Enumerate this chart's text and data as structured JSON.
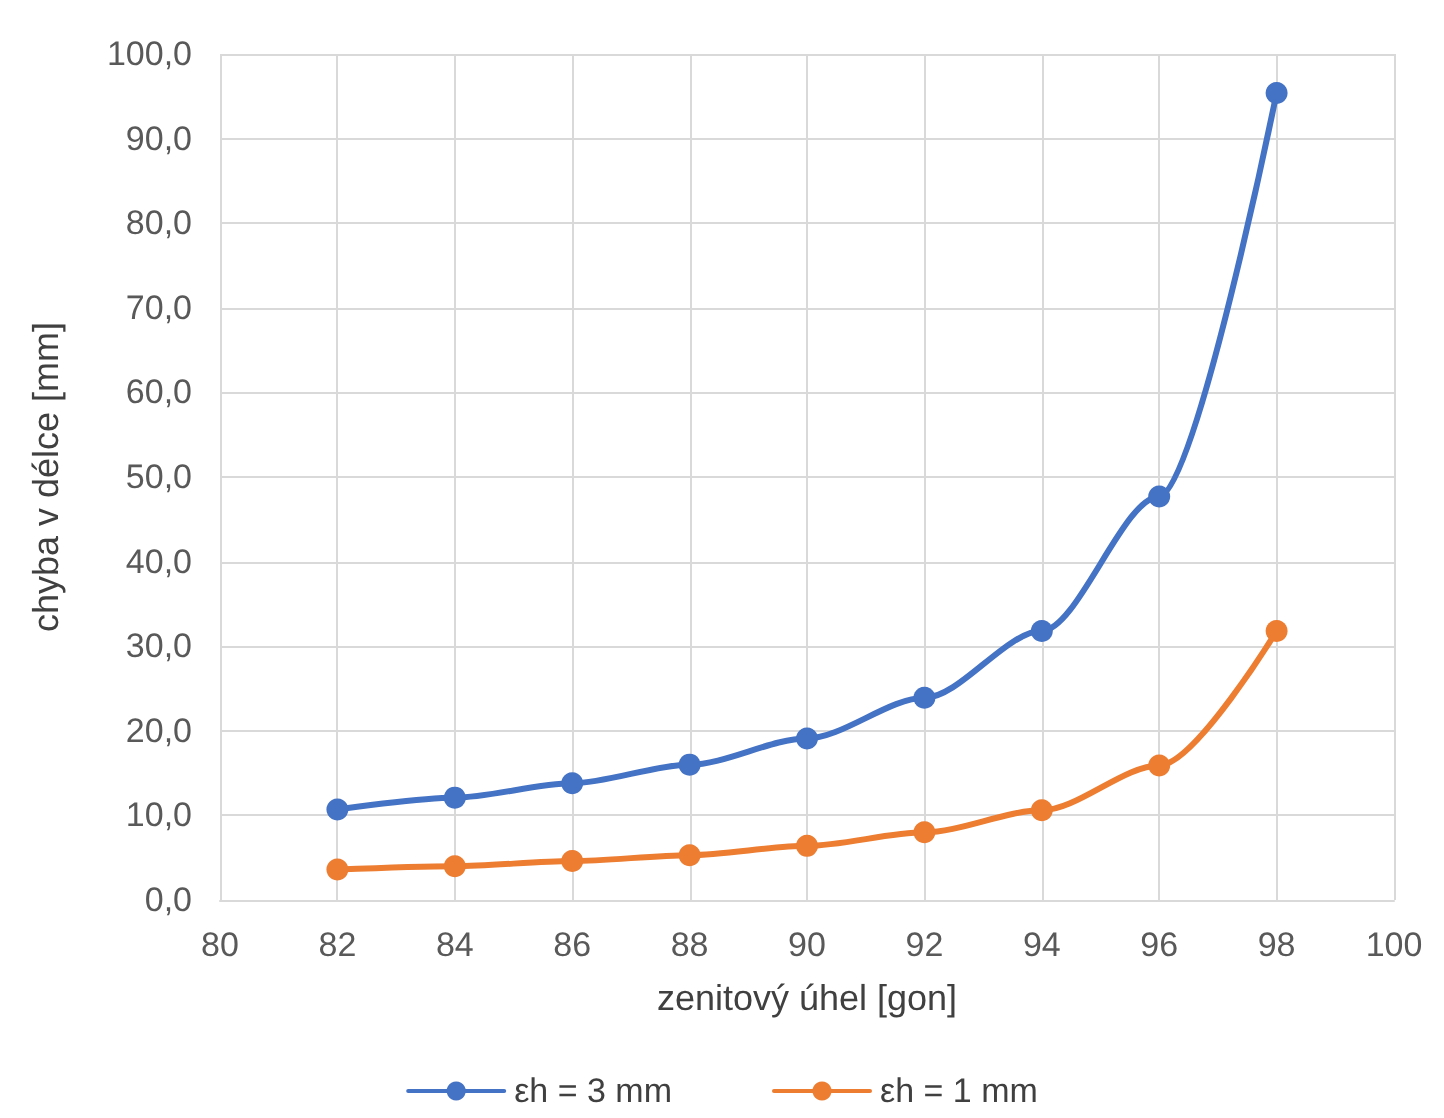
{
  "chart_data": {
    "type": "line",
    "xlabel": "zenitový úhel [gon]",
    "ylabel": "chyba v délce [mm]",
    "x": [
      82,
      84,
      86,
      88,
      90,
      92,
      94,
      96,
      98
    ],
    "series": [
      {
        "name": "εh = 3 mm",
        "color": "#4472c4",
        "values": [
          10.7,
          12.1,
          13.8,
          16.0,
          19.1,
          23.9,
          31.8,
          47.7,
          95.4
        ]
      },
      {
        "name": "εh = 1 mm",
        "color": "#ed7d31",
        "values": [
          3.6,
          4.0,
          4.6,
          5.3,
          6.4,
          8.0,
          10.6,
          15.9,
          31.8
        ]
      }
    ],
    "xlim": [
      80,
      100
    ],
    "xticks": [
      80,
      82,
      84,
      86,
      88,
      90,
      92,
      94,
      96,
      98,
      100
    ],
    "ylim": [
      0,
      100
    ],
    "yticks": [
      {
        "value": 0,
        "label": "0,0"
      },
      {
        "value": 10,
        "label": "10,0"
      },
      {
        "value": 20,
        "label": "20,0"
      },
      {
        "value": 30,
        "label": "30,0"
      },
      {
        "value": 40,
        "label": "40,0"
      },
      {
        "value": 50,
        "label": "50,0"
      },
      {
        "value": 60,
        "label": "60,0"
      },
      {
        "value": 70,
        "label": "70,0"
      },
      {
        "value": 80,
        "label": "80,0"
      },
      {
        "value": 90,
        "label": "90,0"
      },
      {
        "value": 100,
        "label": "100,0"
      }
    ],
    "grid": true,
    "legend": "bottom",
    "marker": "circle",
    "line_style": "solid"
  }
}
